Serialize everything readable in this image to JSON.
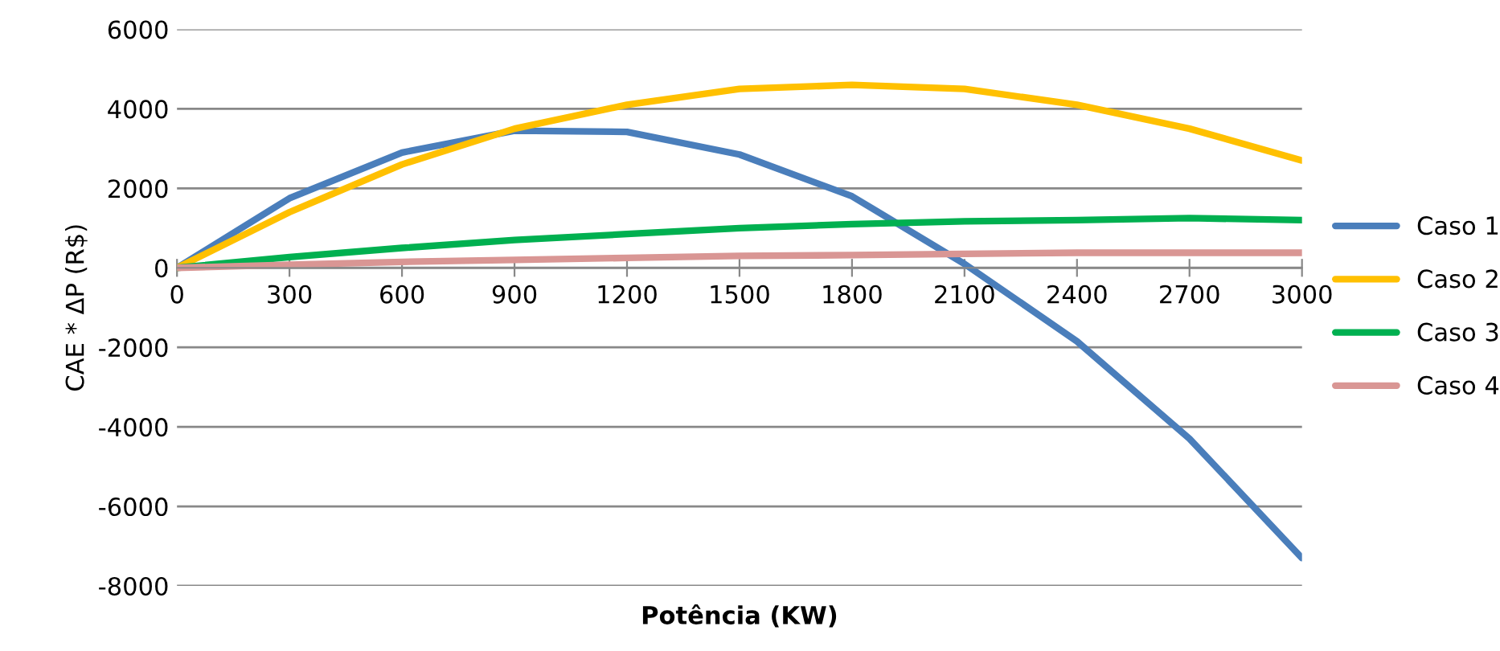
{
  "chart_data": {
    "type": "line",
    "xlabel": "Potência (KW)",
    "ylabel": "CAE * ΔP (R$)",
    "x": [
      0,
      300,
      600,
      900,
      1200,
      1500,
      1800,
      2100,
      2400,
      2700,
      3000
    ],
    "xlim": [
      0,
      3000
    ],
    "xticks": [
      0,
      300,
      600,
      900,
      1200,
      1500,
      1800,
      2100,
      2400,
      2700,
      3000
    ],
    "ylim": [
      -8000,
      6000
    ],
    "yticks": [
      -8000,
      -6000,
      -4000,
      -2000,
      0,
      2000,
      4000,
      6000
    ],
    "grid": "y",
    "legend": "right",
    "marker": "none",
    "line_style": "solid",
    "series": [
      {
        "name": "Caso 1",
        "color": "#4a7ebb",
        "values": [
          0,
          1750,
          2900,
          3450,
          3420,
          2850,
          1800,
          100,
          -1850,
          -4300,
          -7300
        ]
      },
      {
        "name": "Caso 2",
        "color": "#ffc000",
        "values": [
          0,
          1400,
          2600,
          3500,
          4100,
          4500,
          4600,
          4500,
          4100,
          3500,
          2700
        ]
      },
      {
        "name": "Caso 3",
        "color": "#00b050",
        "values": [
          0,
          270,
          500,
          700,
          850,
          1000,
          1100,
          1170,
          1200,
          1250,
          1200
        ]
      },
      {
        "name": "Caso 4",
        "color": "#d99694",
        "values": [
          0,
          80,
          150,
          200,
          250,
          300,
          320,
          350,
          380,
          380,
          380
        ]
      }
    ]
  }
}
